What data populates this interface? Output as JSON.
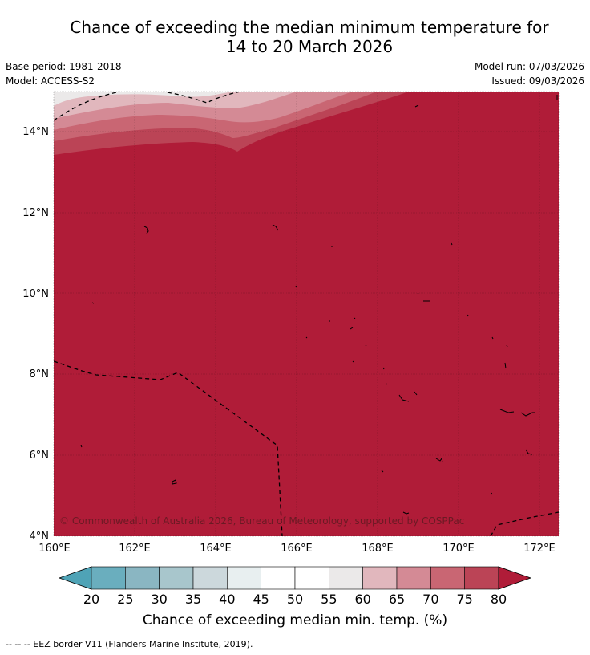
{
  "title": {
    "line1": "Chance of exceeding the median minimum temperature for",
    "line2": "14 to 20 March 2026"
  },
  "meta": {
    "base_period": "Base period: 1981-2018",
    "model": "Model: ACCESS-S2",
    "model_run": "Model run: 07/03/2026",
    "issued": "Issued: 09/03/2026"
  },
  "map": {
    "lat_labels": [
      "14°N",
      "12°N",
      "10°N",
      "8°N",
      "6°N",
      "4°N"
    ],
    "lon_labels": [
      "160°E",
      "162°E",
      "164°E",
      "166°E",
      "168°E",
      "170°E",
      "172°E"
    ],
    "credit": "© Commonwealth of Australia 2026, Bureau of Meteorology, supported by COSPPac"
  },
  "colorbar": {
    "ticks": [
      "20",
      "25",
      "30",
      "35",
      "40",
      "45",
      "50",
      "55",
      "60",
      "65",
      "70",
      "75",
      "80"
    ],
    "colors": [
      "#6aaebe",
      "#8ab6c2",
      "#a8c6cc",
      "#ccd8dc",
      "#e8eff0",
      "#ffffff",
      "#ffffff",
      "#ebe9e9",
      "#e1b7bd",
      "#d48a95",
      "#c96673",
      "#bb4456"
    ],
    "low_color": "#4fa3b6",
    "high_color": "#b01c38",
    "title": "Chance of exceeding median min. temp. (%)"
  },
  "footnote": "--  --  -- EEZ border V11 (Flanders Marine Institute, 2019)."
}
